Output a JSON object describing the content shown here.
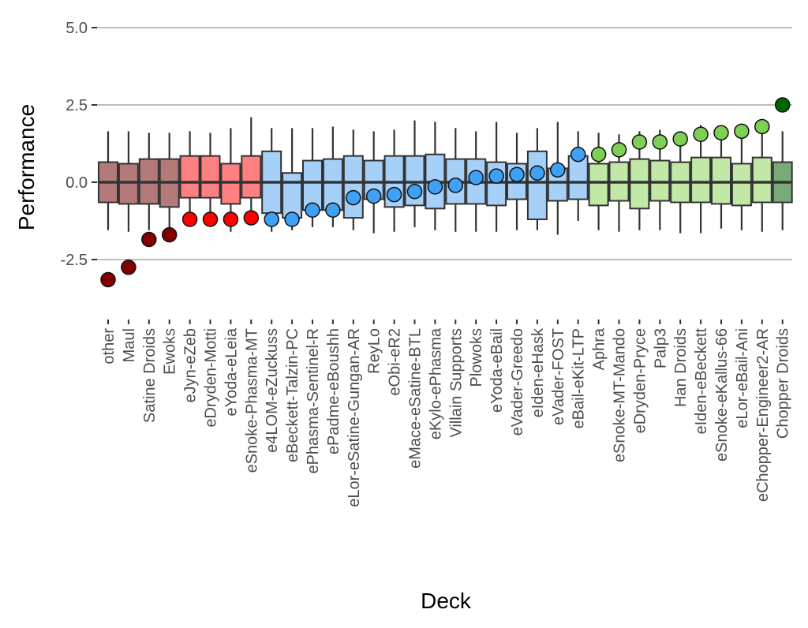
{
  "chart_data": {
    "type": "boxplot",
    "xlabel": "Deck",
    "ylabel": "Performance",
    "ylim": [
      -4.05,
      5.05
    ],
    "yticks": [
      5.0,
      2.5,
      0.0,
      -2.5
    ],
    "ytick_labels": [
      "5.0",
      "2.5",
      "0.0",
      "-2.5"
    ],
    "grid": "horizontal",
    "group_styles": {
      "dark_red": {
        "box": "#b47a7a",
        "point": "#800000"
      },
      "red": {
        "box": "#ff8080",
        "point": "#ff0000"
      },
      "blue": {
        "box": "#a6d0f8",
        "point": "#3fa0f4"
      },
      "green": {
        "box": "#c2e8a8",
        "point": "#7ecf55"
      },
      "dark_green": {
        "box": "#7aaa7a",
        "point": "#006600"
      }
    },
    "decks": [
      {
        "name": "other",
        "group": "dark_red",
        "q1": -0.65,
        "q3": 0.65,
        "whisker_low": -1.55,
        "whisker_high": 1.65,
        "performance": -3.15
      },
      {
        "name": "Maul",
        "group": "dark_red",
        "q1": -0.7,
        "q3": 0.6,
        "whisker_low": -1.6,
        "whisker_high": 1.65,
        "performance": -2.75
      },
      {
        "name": "Satine Droids",
        "group": "dark_red",
        "q1": -0.7,
        "q3": 0.75,
        "whisker_low": -1.55,
        "whisker_high": 1.6,
        "performance": -1.85
      },
      {
        "name": "Ewoks",
        "group": "dark_red",
        "q1": -0.8,
        "q3": 0.75,
        "whisker_low": -1.6,
        "whisker_high": 1.6,
        "performance": -1.7
      },
      {
        "name": "eJyn-eZeb",
        "group": "red",
        "q1": -0.5,
        "q3": 0.85,
        "whisker_low": -1.35,
        "whisker_high": 1.65,
        "performance": -1.2
      },
      {
        "name": "eDryden-Motti",
        "group": "red",
        "q1": -0.5,
        "q3": 0.85,
        "whisker_low": -1.4,
        "whisker_high": 1.6,
        "performance": -1.2
      },
      {
        "name": "eYoda-eLeia",
        "group": "red",
        "q1": -0.7,
        "q3": 0.6,
        "whisker_low": -1.6,
        "whisker_high": 1.75,
        "performance": -1.2
      },
      {
        "name": "eSnoke-Phasma-MT",
        "group": "red",
        "q1": -0.5,
        "q3": 0.85,
        "whisker_low": -1.2,
        "whisker_high": 2.1,
        "performance": -1.15
      },
      {
        "name": "e4LOM-eZuckuss",
        "group": "blue",
        "q1": -1.0,
        "q3": 1.0,
        "whisker_low": -1.6,
        "whisker_high": 1.75,
        "performance": -1.2
      },
      {
        "name": "eBeckett-Talzin-PC",
        "group": "blue",
        "q1": -1.15,
        "q3": 0.3,
        "whisker_low": -1.55,
        "whisker_high": 1.75,
        "performance": -1.2
      },
      {
        "name": "ePhasma-Sentinel-R",
        "group": "blue",
        "q1": -0.9,
        "q3": 0.7,
        "whisker_low": -1.45,
        "whisker_high": 1.75,
        "performance": -0.9
      },
      {
        "name": "ePadme-eBoushh",
        "group": "blue",
        "q1": -0.9,
        "q3": 0.75,
        "whisker_low": -1.45,
        "whisker_high": 1.8,
        "performance": -0.9
      },
      {
        "name": "eLor-eSatine-Gungan-AR",
        "group": "blue",
        "q1": -1.15,
        "q3": 0.85,
        "whisker_low": -1.55,
        "whisker_high": 1.7,
        "performance": -0.5
      },
      {
        "name": "ReyLo",
        "group": "blue",
        "q1": -0.55,
        "q3": 0.7,
        "whisker_low": -1.65,
        "whisker_high": 1.65,
        "performance": -0.45
      },
      {
        "name": "eObi-eR2",
        "group": "blue",
        "q1": -0.8,
        "q3": 0.85,
        "whisker_low": -1.6,
        "whisker_high": 1.7,
        "performance": -0.4
      },
      {
        "name": "eMace-eSatine-BTL",
        "group": "blue",
        "q1": -0.75,
        "q3": 0.85,
        "whisker_low": -1.45,
        "whisker_high": 2.0,
        "performance": -0.3
      },
      {
        "name": "eKylo-ePhasma",
        "group": "blue",
        "q1": -0.85,
        "q3": 0.9,
        "whisker_low": -1.55,
        "whisker_high": 1.95,
        "performance": -0.15
      },
      {
        "name": "Villain Supports",
        "group": "blue",
        "q1": -0.7,
        "q3": 0.75,
        "whisker_low": -1.6,
        "whisker_high": 1.75,
        "performance": -0.1
      },
      {
        "name": "Plowoks",
        "group": "blue",
        "q1": -0.7,
        "q3": 0.75,
        "whisker_low": -1.6,
        "whisker_high": 1.65,
        "performance": 0.15
      },
      {
        "name": "eYoda-eBail",
        "group": "blue",
        "q1": -0.75,
        "q3": 0.65,
        "whisker_low": -1.6,
        "whisker_high": 1.95,
        "performance": 0.2
      },
      {
        "name": "eVader-Greedo",
        "group": "blue",
        "q1": -0.55,
        "q3": 0.6,
        "whisker_low": -1.55,
        "whisker_high": 1.6,
        "performance": 0.25
      },
      {
        "name": "eIden-eHask",
        "group": "blue",
        "q1": -1.2,
        "q3": 1.0,
        "whisker_low": -1.55,
        "whisker_high": 1.75,
        "performance": 0.3
      },
      {
        "name": "eVader-FOST",
        "group": "blue",
        "q1": -0.6,
        "q3": 0.45,
        "whisker_low": -1.7,
        "whisker_high": 1.95,
        "performance": 0.4
      },
      {
        "name": "eBail-eKit-LTP",
        "group": "blue",
        "q1": -0.55,
        "q3": 0.85,
        "whisker_low": -1.25,
        "whisker_high": 1.65,
        "performance": 0.9
      },
      {
        "name": "Aphra",
        "group": "green",
        "q1": -0.75,
        "q3": 0.6,
        "whisker_low": -1.55,
        "whisker_high": 1.6,
        "performance": 0.9
      },
      {
        "name": "eSnoke-MT-Mando",
        "group": "green",
        "q1": -0.6,
        "q3": 0.65,
        "whisker_low": -1.6,
        "whisker_high": 1.55,
        "performance": 1.05
      },
      {
        "name": "eDryden-Pryce",
        "group": "green",
        "q1": -0.85,
        "q3": 0.75,
        "whisker_low": -1.55,
        "whisker_high": 1.65,
        "performance": 1.3
      },
      {
        "name": "Palp3",
        "group": "green",
        "q1": -0.6,
        "q3": 0.7,
        "whisker_low": -1.55,
        "whisker_high": 1.7,
        "performance": 1.3
      },
      {
        "name": "Han Droids",
        "group": "green",
        "q1": -0.65,
        "q3": 0.65,
        "whisker_low": -1.65,
        "whisker_high": 1.55,
        "performance": 1.4
      },
      {
        "name": "eIden-eBeckett",
        "group": "green",
        "q1": -0.65,
        "q3": 0.8,
        "whisker_low": -1.65,
        "whisker_high": 1.85,
        "performance": 1.55
      },
      {
        "name": "eSnoke-eKallus-66",
        "group": "green",
        "q1": -0.7,
        "q3": 0.8,
        "whisker_low": -1.5,
        "whisker_high": 1.8,
        "performance": 1.6
      },
      {
        "name": "eLor-eBail-Ani",
        "group": "green",
        "q1": -0.75,
        "q3": 0.6,
        "whisker_low": -1.55,
        "whisker_high": 1.75,
        "performance": 1.65
      },
      {
        "name": "eChopper-Engineer2-AR",
        "group": "green",
        "q1": -0.65,
        "q3": 0.8,
        "whisker_low": -1.6,
        "whisker_high": 1.85,
        "performance": 1.8
      },
      {
        "name": "Chopper Droids",
        "group": "dark_green",
        "q1": -0.65,
        "q3": 0.65,
        "whisker_low": -1.55,
        "whisker_high": 1.65,
        "performance": 2.5
      }
    ]
  }
}
